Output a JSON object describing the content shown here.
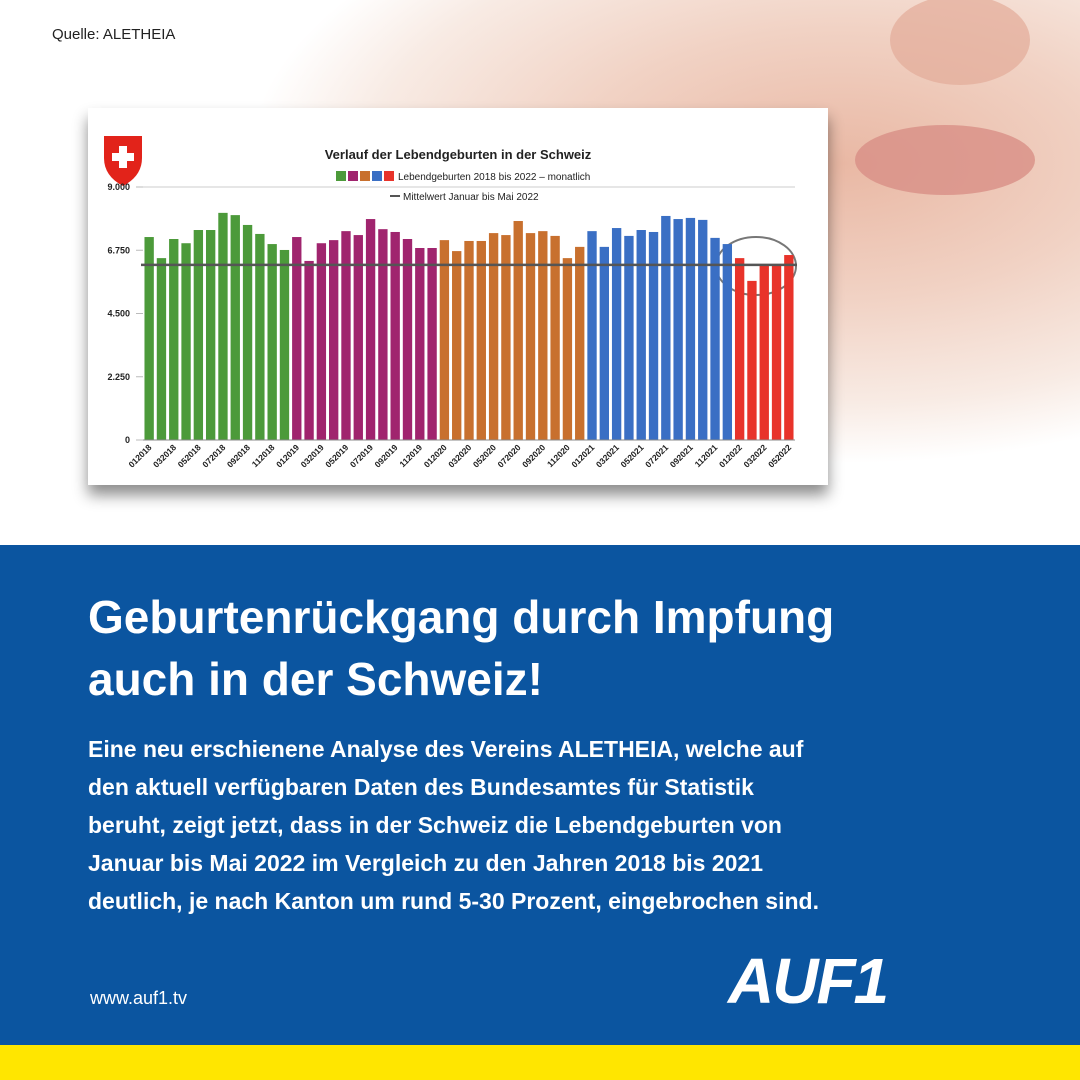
{
  "source": "Quelle: ALETHEIA",
  "chart_data": {
    "type": "bar",
    "title": "Verlauf der Lebendgeburten in der Schweiz",
    "series_name": "Lebendgeburten 2018 bis 2022 – monatlich",
    "categories": [
      "012018",
      null,
      "032018",
      null,
      "052018",
      null,
      "072018",
      null,
      "092018",
      null,
      "112018",
      null,
      "012019",
      null,
      "032019",
      null,
      "052019",
      null,
      "072019",
      null,
      "092019",
      null,
      "112019",
      null,
      "012020",
      null,
      "032020",
      null,
      "052020",
      null,
      "072020",
      null,
      "092020",
      null,
      "112020",
      null,
      "012021",
      null,
      "032021",
      null,
      "052021",
      null,
      "072021",
      null,
      "092021",
      null,
      "112021",
      null,
      "012022",
      null,
      "032022",
      null,
      "052022"
    ],
    "values": [
      7220,
      6470,
      7150,
      7000,
      7470,
      7470,
      8080,
      8000,
      7650,
      7330,
      6970,
      6760,
      7220,
      6370,
      7000,
      7110,
      7430,
      7290,
      7860,
      7500,
      7400,
      7150,
      6830,
      6830,
      7110,
      6720,
      7080,
      7080,
      7360,
      7290,
      7790,
      7360,
      7430,
      7260,
      6470,
      6870,
      7430,
      6870,
      7540,
      7260,
      7470,
      7400,
      7970,
      7860,
      7900,
      7830,
      7190,
      6970,
      6470,
      5660,
      6220,
      6220,
      6580
    ],
    "colors": [
      "#4c9a3a",
      "#4c9a3a",
      "#4c9a3a",
      "#4c9a3a",
      "#4c9a3a",
      "#4c9a3a",
      "#4c9a3a",
      "#4c9a3a",
      "#4c9a3a",
      "#4c9a3a",
      "#4c9a3a",
      "#4c9a3a",
      "#a0246e",
      "#a0246e",
      "#a0246e",
      "#a0246e",
      "#a0246e",
      "#a0246e",
      "#a0246e",
      "#a0246e",
      "#a0246e",
      "#a0246e",
      "#a0246e",
      "#a0246e",
      "#c8702e",
      "#c8702e",
      "#c8702e",
      "#c8702e",
      "#c8702e",
      "#c8702e",
      "#c8702e",
      "#c8702e",
      "#c8702e",
      "#c8702e",
      "#c8702e",
      "#c8702e",
      "#3a6fc4",
      "#3a6fc4",
      "#3a6fc4",
      "#3a6fc4",
      "#3a6fc4",
      "#3a6fc4",
      "#3a6fc4",
      "#3a6fc4",
      "#3a6fc4",
      "#3a6fc4",
      "#3a6fc4",
      "#3a6fc4",
      "#e8332a",
      "#e8332a",
      "#e8332a",
      "#e8332a",
      "#e8332a"
    ],
    "mean": {
      "name": "Mittelwert Januar bis Mai 2022",
      "value": 6230,
      "color": "#555555"
    },
    "ylim": [
      0,
      9000
    ],
    "yticks": [
      {
        "value": 0,
        "label": "0"
      },
      {
        "value": 2250,
        "label": "2.250"
      },
      {
        "value": 4500,
        "label": "4.500"
      },
      {
        "value": 6750,
        "label": "6.750"
      },
      {
        "value": 9000,
        "label": "9.000"
      }
    ],
    "grid": false
  },
  "headline": [
    "Geburtenrückgang durch Impfung",
    "auch in der Schweiz!"
  ],
  "body": [
    "Eine neu erschienene Analyse des Vereins ALETHEIA, welche auf",
    "den aktuell verfügbaren Daten des Bundesamtes für Statistik",
    "beruht, zeigt jetzt, dass in der Schweiz die Lebendgeburten von",
    "Januar bis Mai 2022 im Vergleich zu den Jahren 2018 bis 2021",
    "deutlich, je nach Kanton um rund 5-30 Prozent, eingebrochen sind."
  ],
  "url": "www.auf1.tv",
  "logo": "AUF1"
}
